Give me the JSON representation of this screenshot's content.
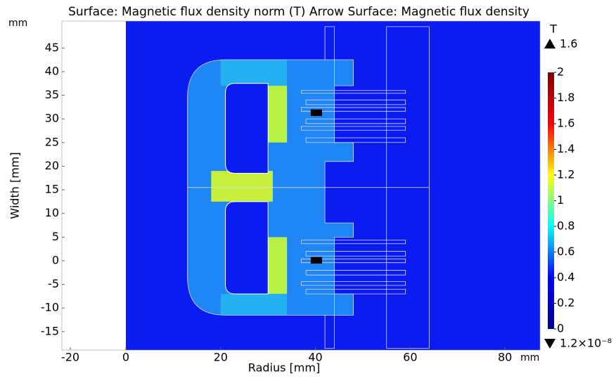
{
  "chart_data": {
    "type": "surface",
    "title": "Surface: Magnetic flux density norm (T)  Arrow Surface: Magnetic flux density",
    "x_label": "Radius [mm]",
    "y_label": "Width [mm]",
    "x_unit": "mm",
    "y_unit": "mm",
    "xlim": [
      -13.5,
      87.4
    ],
    "ylim": [
      -18.9,
      50.7
    ],
    "xticks": [
      -20,
      0,
      20,
      40,
      60,
      80
    ],
    "yticks": [
      -15,
      -10,
      -5,
      0,
      5,
      10,
      15,
      20,
      25,
      30,
      35,
      40,
      45
    ],
    "colorbar": {
      "title": "T",
      "lim": [
        0,
        2
      ],
      "ticks": [
        0,
        0.2,
        0.4,
        0.6,
        0.8,
        1,
        1.2,
        1.4,
        1.6,
        1.8,
        2
      ],
      "colors": [
        "#00008f",
        "#0000ff",
        "#00ffff",
        "#ffff00",
        "#ff0000",
        "#800000"
      ],
      "max": 1.6,
      "min": {
        "value": 1.2e-08,
        "label": "1.2×10⁻⁸"
      }
    }
  }
}
